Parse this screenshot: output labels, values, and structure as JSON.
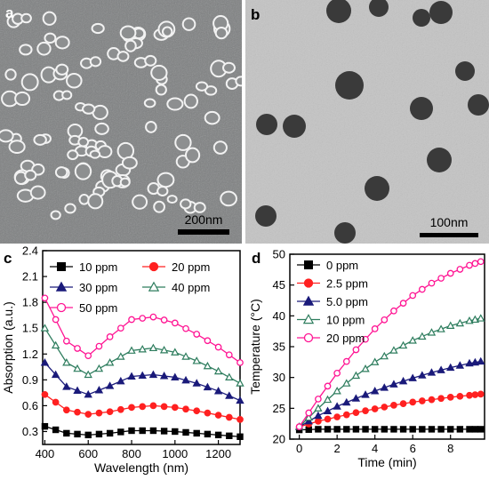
{
  "panels": {
    "a": {
      "label": "a",
      "scale_bar": "200nm"
    },
    "b": {
      "label": "b",
      "scale_bar": "100nm"
    }
  },
  "chart_data": [
    {
      "panel_label": "c",
      "type": "line",
      "xlabel": "Wavelength (nm)",
      "ylabel": "Absorption (a.u.)",
      "xlim": [
        390,
        1300
      ],
      "ylim": [
        0.15,
        2.4
      ],
      "xticks": [
        400,
        600,
        800,
        1000,
        1200
      ],
      "yticks": [
        0.3,
        0.6,
        0.9,
        1.2,
        1.5,
        1.8,
        2.1,
        2.4
      ],
      "ytick_labels": [
        "0.3",
        "0.6",
        "0.9",
        "1.2",
        "1.5",
        "1.8",
        "2.1",
        "2.4"
      ],
      "legend": "top, two columns",
      "x": [
        400,
        500,
        600,
        700,
        800,
        900,
        1000,
        1100,
        1200,
        1300
      ],
      "series": [
        {
          "name": "10 ppm",
          "marker": "square-filled",
          "color": "#000000",
          "values": [
            0.36,
            0.28,
            0.26,
            0.28,
            0.31,
            0.31,
            0.3,
            0.28,
            0.26,
            0.24
          ]
        },
        {
          "name": "20 ppm",
          "marker": "circle-filled",
          "color": "#ff2020",
          "values": [
            0.73,
            0.55,
            0.5,
            0.53,
            0.58,
            0.6,
            0.58,
            0.54,
            0.49,
            0.44
          ]
        },
        {
          "name": "30 ppm",
          "marker": "triangle-filled",
          "color": "#1a1a7a",
          "values": [
            1.1,
            0.82,
            0.73,
            0.83,
            0.94,
            0.96,
            0.93,
            0.86,
            0.77,
            0.66
          ]
        },
        {
          "name": "40 ppm",
          "marker": "triangle-open",
          "color": "#2e7d5e",
          "values": [
            1.5,
            1.1,
            0.96,
            1.1,
            1.24,
            1.27,
            1.22,
            1.12,
            1.0,
            0.86
          ]
        },
        {
          "name": "50 ppm",
          "marker": "circle-open",
          "color": "#ff1493",
          "values": [
            1.85,
            1.35,
            1.18,
            1.4,
            1.6,
            1.63,
            1.56,
            1.43,
            1.28,
            1.1
          ]
        }
      ]
    },
    {
      "panel_label": "d",
      "type": "line",
      "xlabel": "Time (min)",
      "ylabel": "Temperature (°C)",
      "xlim": [
        -0.5,
        9.8
      ],
      "ylim": [
        20,
        50
      ],
      "xticks": [
        0,
        2,
        4,
        6,
        8
      ],
      "yticks": [
        20,
        25,
        30,
        35,
        40,
        45,
        50
      ],
      "legend": "top-left",
      "x": [
        0,
        1,
        2,
        3,
        4,
        5,
        6,
        7,
        8,
        9,
        9.6
      ],
      "series": [
        {
          "name": "0 ppm",
          "marker": "square-filled",
          "color": "#000000",
          "values": [
            21.5,
            21.6,
            21.6,
            21.6,
            21.6,
            21.6,
            21.6,
            21.6,
            21.6,
            21.6,
            21.6
          ]
        },
        {
          "name": "2.5 ppm",
          "marker": "circle-filled",
          "color": "#ff2020",
          "values": [
            22.0,
            22.9,
            23.6,
            24.3,
            24.9,
            25.5,
            26.0,
            26.4,
            26.8,
            27.1,
            27.3
          ]
        },
        {
          "name": "5.0 ppm",
          "marker": "triangle-filled",
          "color": "#1a1a7a",
          "values": [
            22.0,
            23.8,
            25.3,
            26.6,
            27.8,
            28.9,
            29.9,
            30.8,
            31.6,
            32.3,
            32.6
          ]
        },
        {
          "name": "10 ppm",
          "marker": "triangle-open",
          "color": "#2e7d5e",
          "values": [
            22.0,
            25.0,
            27.8,
            30.3,
            32.5,
            34.4,
            36.0,
            37.3,
            38.4,
            39.2,
            39.6
          ]
        },
        {
          "name": "20 ppm",
          "marker": "circle-open",
          "color": "#ff1493",
          "values": [
            22.0,
            26.5,
            30.7,
            34.5,
            37.9,
            40.8,
            43.3,
            45.3,
            46.9,
            48.2,
            48.8
          ]
        }
      ]
    }
  ]
}
